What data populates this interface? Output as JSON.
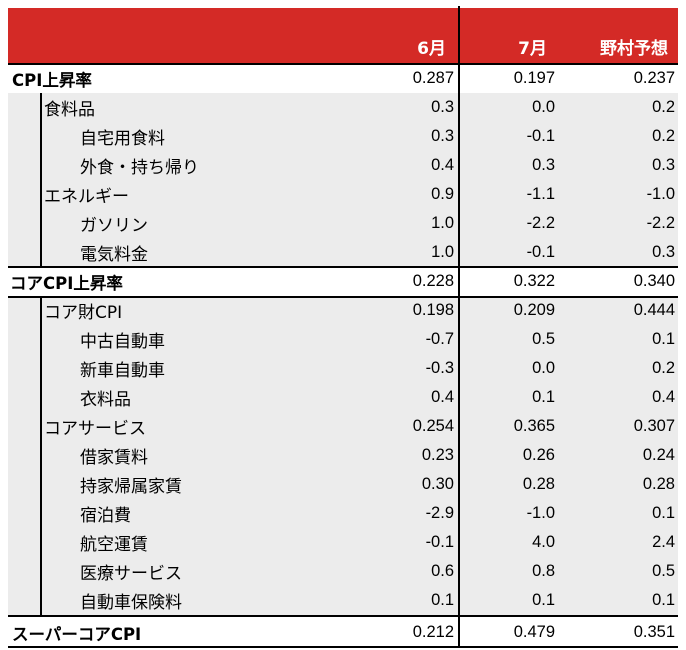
{
  "header": {
    "col1": "6月",
    "col2": "7月",
    "col3": "野村予想"
  },
  "rows": [
    {
      "label": "CPI上昇率",
      "v1": "0.287",
      "v2": "0.197",
      "v3": "0.237"
    },
    {
      "label": "食料品",
      "v1": "0.3",
      "v2": "0.0",
      "v3": "0.2"
    },
    {
      "label": "自宅用食料",
      "v1": "0.3",
      "v2": "-0.1",
      "v3": "0.2"
    },
    {
      "label": "外食・持ち帰り",
      "v1": "0.4",
      "v2": "0.3",
      "v3": "0.3"
    },
    {
      "label": "エネルギー",
      "v1": "0.9",
      "v2": "-1.1",
      "v3": "-1.0"
    },
    {
      "label": "ガソリン",
      "v1": "1.0",
      "v2": "-2.2",
      "v3": "-2.2"
    },
    {
      "label": "電気料金",
      "v1": "1.0",
      "v2": "-0.1",
      "v3": "0.3"
    },
    {
      "label": "コアCPI上昇率",
      "v1": "0.228",
      "v2": "0.322",
      "v3": "0.340"
    },
    {
      "label": "コア財CPI",
      "v1": "0.198",
      "v2": "0.209",
      "v3": "0.444"
    },
    {
      "label": "中古自動車",
      "v1": "-0.7",
      "v2": "0.5",
      "v3": "0.1"
    },
    {
      "label": "新車自動車",
      "v1": "-0.3",
      "v2": "0.0",
      "v3": "0.2"
    },
    {
      "label": "衣料品",
      "v1": "0.4",
      "v2": "0.1",
      "v3": "0.4"
    },
    {
      "label": "コアサービス",
      "v1": "0.254",
      "v2": "0.365",
      "v3": "0.307"
    },
    {
      "label": "借家賃料",
      "v1": "0.23",
      "v2": "0.26",
      "v3": "0.24"
    },
    {
      "label": "持家帰属家賃",
      "v1": "0.30",
      "v2": "0.28",
      "v3": "0.28"
    },
    {
      "label": "宿泊費",
      "v1": "-2.9",
      "v2": "-1.0",
      "v3": "0.1"
    },
    {
      "label": "航空運賃",
      "v1": "-0.1",
      "v2": "4.0",
      "v3": "2.4"
    },
    {
      "label": "医療サービス",
      "v1": "0.6",
      "v2": "0.8",
      "v3": "0.5"
    },
    {
      "label": "自動車保険料",
      "v1": "0.1",
      "v2": "0.1",
      "v3": "0.1"
    },
    {
      "label": "スーパーコアCPI",
      "v1": "0.212",
      "v2": "0.479",
      "v3": "0.351"
    }
  ],
  "colors": {
    "header_bg": "#d42a26",
    "header_text": "#ffffff",
    "shaded_row": "#ececec"
  }
}
